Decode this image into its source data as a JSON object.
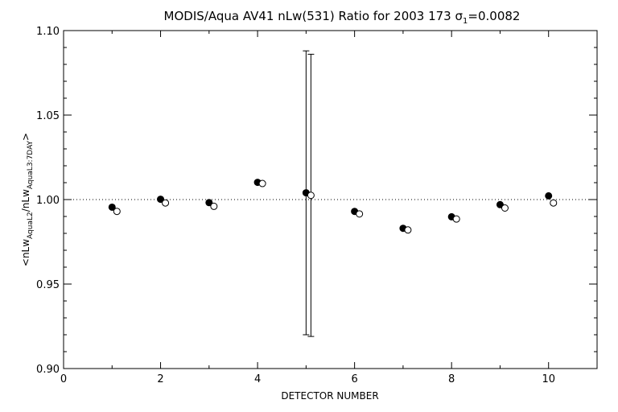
{
  "chart_data": {
    "type": "scatter",
    "title": {
      "prefix": "MODIS/Aqua AV41 nLw(531) Ratio for 2003 173 ",
      "sigma_symbol": "σ",
      "sigma_sub": "1",
      "sigma_value": "=0.0082"
    },
    "xlabel": "DETECTOR NUMBER",
    "ylabel": {
      "open": "<nLw",
      "sub1": "AquaL2",
      "mid": "/nLw",
      "sub2": "AquaL3:7DAY",
      "close": ">"
    },
    "xlim": [
      0,
      11
    ],
    "ylim": [
      0.9,
      1.1
    ],
    "x_ticks": [
      0,
      2,
      4,
      6,
      8,
      10
    ],
    "x_tick_labels": [
      "0",
      "2",
      "4",
      "6",
      "8",
      "10"
    ],
    "y_ticks": [
      0.9,
      0.95,
      1.0,
      1.05,
      1.1
    ],
    "y_tick_labels": [
      "0.90",
      "0.95",
      "1.00",
      "1.05",
      "1.10"
    ],
    "reference_line": 1.0,
    "series": [
      {
        "marker": "filled-circle",
        "x": [
          1,
          2,
          3,
          4,
          5,
          6,
          7,
          8,
          9,
          10
        ],
        "y": [
          0.9955,
          1.0002,
          0.9982,
          1.0102,
          1.004,
          0.993,
          0.983,
          0.9898,
          0.997,
          1.0022
        ],
        "error_bars": [
          null,
          null,
          null,
          null,
          [
            0.92,
            1.088
          ],
          null,
          null,
          null,
          null,
          null
        ]
      },
      {
        "marker": "open-circle",
        "x": [
          1.1,
          2.1,
          3.1,
          4.1,
          5.1,
          6.1,
          7.1,
          8.1,
          9.1,
          10.1
        ],
        "y": [
          0.993,
          0.998,
          0.996,
          1.0095,
          1.0025,
          0.9915,
          0.982,
          0.9885,
          0.995,
          0.998
        ],
        "error_bars": [
          null,
          null,
          null,
          null,
          [
            0.919,
            1.086
          ],
          null,
          null,
          null,
          null,
          null
        ]
      }
    ],
    "colors": {
      "axes": "#000000",
      "background": "#ffffff"
    },
    "grid": false
  }
}
